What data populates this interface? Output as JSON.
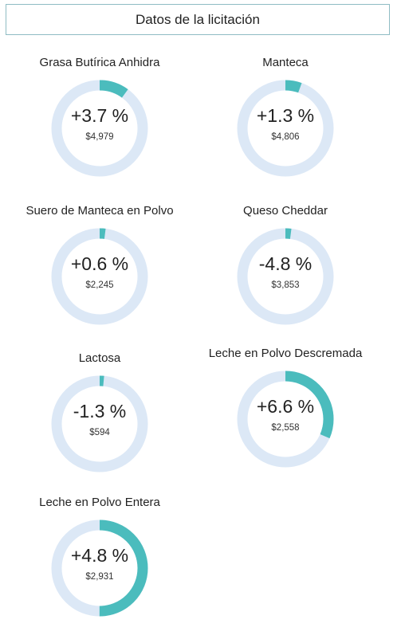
{
  "header": {
    "title": "Datos de la licitación"
  },
  "colors": {
    "ring_bg": "#dce8f6",
    "ring_fg": "#4bbcbd",
    "border": "#8fbcc4"
  },
  "chart_data": {
    "type": "donut",
    "title": "Datos de la licitación",
    "items": [
      {
        "label": "Grasa Butírica Anhidra",
        "change_label": "+3.7 %",
        "change": 3.7,
        "price": "$4,979"
      },
      {
        "label": "Manteca",
        "change_label": "+1.3 %",
        "change": 1.3,
        "price": "$4,806"
      },
      {
        "label": "Suero de Manteca en Polvo",
        "change_label": "+0.6 %",
        "change": 0.6,
        "price": "$2,245"
      },
      {
        "label": "Queso Cheddar",
        "change_label": "-4.8 %",
        "change": -4.8,
        "price": "$3,853"
      },
      {
        "label": "Lactosa",
        "change_label": "-1.3 %",
        "change": -1.3,
        "price": "$594"
      },
      {
        "label": "Leche en Polvo Descremada",
        "change_label": "+6.6 %",
        "change": 6.6,
        "price": "$2,558"
      },
      {
        "label": "Leche en Polvo Entera",
        "change_label": "+4.8 %",
        "change": 4.8,
        "price": "$2,931"
      }
    ],
    "ring_fill_fraction": [
      0.1,
      0.055,
      0.02,
      0.02,
      0.015,
      0.315,
      0.5
    ]
  }
}
